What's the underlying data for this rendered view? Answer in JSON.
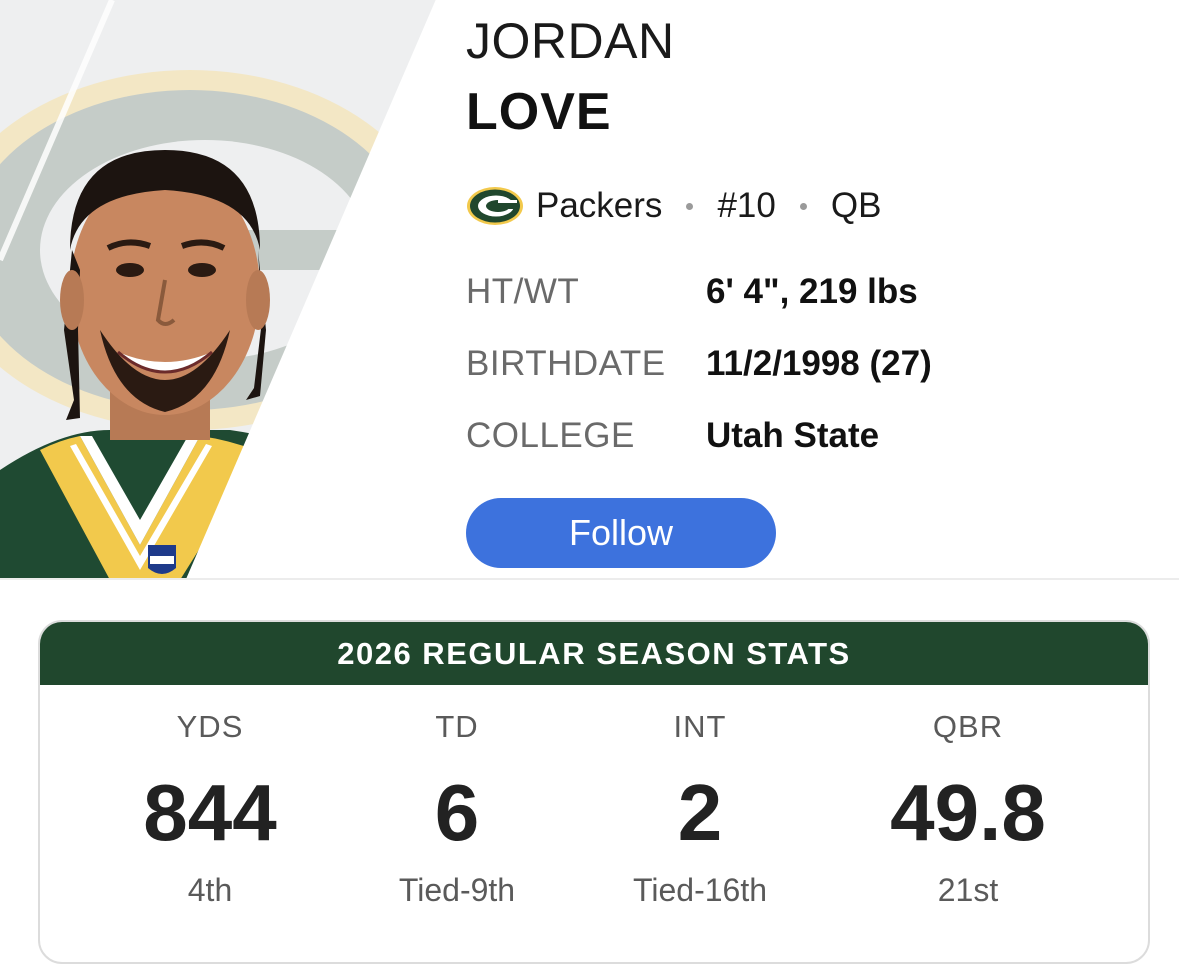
{
  "player": {
    "first_name": "JORDAN",
    "last_name": "LOVE",
    "team": "Packers",
    "number": "#10",
    "position": "QB"
  },
  "info": {
    "height_weight": {
      "label": "HT/WT",
      "value": "6' 4\", 219 lbs"
    },
    "birthdate": {
      "label": "BIRTHDATE",
      "value": "11/2/1998 (27)"
    },
    "college": {
      "label": "COLLEGE",
      "value": "Utah State"
    }
  },
  "follow_label": "Follow",
  "stats": {
    "title": "2026 REGULAR SEASON STATS",
    "items": [
      {
        "label": "YDS",
        "value": "844",
        "rank": "4th"
      },
      {
        "label": "TD",
        "value": "6",
        "rank": "Tied-9th"
      },
      {
        "label": "INT",
        "value": "2",
        "rank": "Tied-16th"
      },
      {
        "label": "QBR",
        "value": "49.8",
        "rank": "21st"
      }
    ]
  },
  "colors": {
    "team_green": "#20472d",
    "team_gold": "#f2c94c",
    "follow_blue": "#3d72dd"
  },
  "icons": {
    "team_logo": "packers-g-logo-icon"
  }
}
